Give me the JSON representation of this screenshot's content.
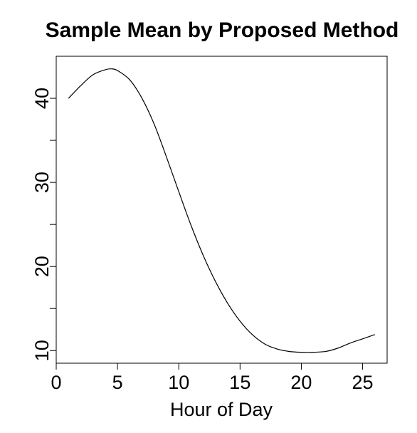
{
  "chart_data": {
    "type": "line",
    "title": "Sample Mean by Proposed Method",
    "xlabel": "Hour of Day",
    "ylabel": "",
    "xlim": [
      0,
      27
    ],
    "ylim": [
      8.5,
      45
    ],
    "xticks": [
      0,
      5,
      10,
      15,
      20,
      25
    ],
    "yticks": [
      10,
      20,
      30,
      40
    ],
    "yminor_ticks": [
      15,
      25,
      35
    ],
    "grid": false,
    "legend": "none",
    "colors": {
      "line": "#000000",
      "axis": "#000000",
      "background": "#ffffff"
    },
    "series": [
      {
        "x": [
          1,
          2,
          3,
          4,
          4.5,
          5,
          6,
          7,
          8,
          9,
          10,
          11,
          12,
          13,
          14,
          15,
          16,
          17,
          18,
          19,
          20,
          21,
          22,
          23,
          24,
          25,
          26
        ],
        "values": [
          40,
          41.5,
          42.8,
          43.4,
          43.5,
          43.3,
          42.2,
          40,
          36.9,
          33,
          28.9,
          24.9,
          21.3,
          18.2,
          15.6,
          13.5,
          11.9,
          10.8,
          10.2,
          9.9,
          9.8,
          9.8,
          9.9,
          10.3,
          10.9,
          11.4,
          11.9
        ]
      }
    ]
  }
}
